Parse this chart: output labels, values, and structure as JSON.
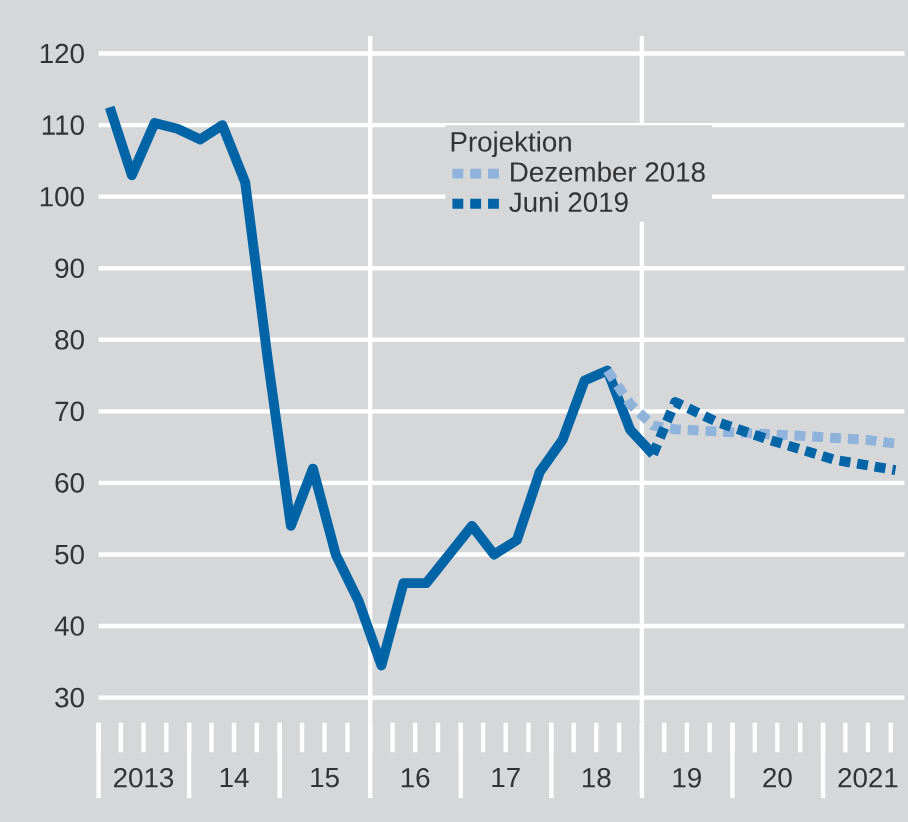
{
  "chart_data": {
    "type": "line",
    "legend_title": "Projektion",
    "xlim": [
      "2013-01-01",
      "2021-11-25"
    ],
    "ylim": [
      26.5,
      122.5
    ],
    "yticks": [
      30,
      40,
      50,
      60,
      70,
      80,
      90,
      100,
      110,
      120
    ],
    "xticks": [
      {
        "value": "2013-01-01",
        "label": null
      },
      {
        "value": "2013-04-01",
        "label": null
      },
      {
        "value": "2013-07-01",
        "label": "2013"
      },
      {
        "value": "2013-10-01",
        "label": null
      },
      {
        "value": "2014-01-01",
        "label": null
      },
      {
        "value": "2014-04-01",
        "label": null
      },
      {
        "value": "2014-07-01",
        "label": "14"
      },
      {
        "value": "2014-10-01",
        "label": null
      },
      {
        "value": "2015-01-01",
        "label": null
      },
      {
        "value": "2015-04-01",
        "label": null
      },
      {
        "value": "2015-07-01",
        "label": "15"
      },
      {
        "value": "2015-10-01",
        "label": null
      },
      {
        "value": "2016-01-01",
        "label": null
      },
      {
        "value": "2016-04-01",
        "label": null
      },
      {
        "value": "2016-07-01",
        "label": "16"
      },
      {
        "value": "2016-10-01",
        "label": null
      },
      {
        "value": "2017-01-01",
        "label": null
      },
      {
        "value": "2017-04-01",
        "label": null
      },
      {
        "value": "2017-07-01",
        "label": "17"
      },
      {
        "value": "2017-10-01",
        "label": null
      },
      {
        "value": "2018-01-01",
        "label": null
      },
      {
        "value": "2018-04-01",
        "label": null
      },
      {
        "value": "2018-07-01",
        "label": "18"
      },
      {
        "value": "2018-10-01",
        "label": null
      },
      {
        "value": "2019-01-01",
        "label": null
      },
      {
        "value": "2019-04-01",
        "label": null
      },
      {
        "value": "2019-07-01",
        "label": "19"
      },
      {
        "value": "2019-10-01",
        "label": null
      },
      {
        "value": "2020-01-01",
        "label": null
      },
      {
        "value": "2020-04-01",
        "label": null
      },
      {
        "value": "2020-07-01",
        "label": "20"
      },
      {
        "value": "2020-10-01",
        "label": null
      },
      {
        "value": "2021-01-01",
        "label": null
      },
      {
        "value": "2021-04-01",
        "label": null
      },
      {
        "value": "2021-07-01",
        "label": "2021"
      },
      {
        "value": "2021-10-01",
        "label": null
      }
    ],
    "grid": "y",
    "legend": "top",
    "ref_lines": [
      {
        "axis": "x",
        "value": "2016-01-01",
        "color": "#ffffff"
      },
      {
        "axis": "x",
        "value": "2019-01-01",
        "color": "#ffffff"
      }
    ],
    "series": [
      {
        "color": "#0064a6",
        "line_style": "solid",
        "x": [
          "2013-02-15",
          "2013-05-15",
          "2013-08-15",
          "2013-11-15",
          "2014-02-15",
          "2014-05-15",
          "2014-08-15",
          "2014-11-15",
          "2015-02-15",
          "2015-05-15",
          "2015-08-15",
          "2015-11-15",
          "2016-02-15",
          "2016-05-15",
          "2016-08-15",
          "2016-11-15",
          "2017-02-15",
          "2017-05-15",
          "2017-08-15",
          "2017-11-15",
          "2018-02-15",
          "2018-05-15",
          "2018-08-15",
          "2018-11-15",
          "2019-02-15"
        ],
        "values": [
          112.5,
          103,
          110.3,
          109.5,
          108,
          110,
          102,
          77,
          54,
          62,
          50,
          43.5,
          34.5,
          46,
          46,
          50,
          54,
          50,
          52,
          61.5,
          66,
          74.3,
          75.7,
          67.4,
          64
        ]
      },
      {
        "name": "Dezember 2018",
        "color": "#8fb3db",
        "line_style": "dotted",
        "x": [
          "2018-08-15",
          "2018-11-15",
          "2019-02-15",
          "2019-05-15",
          "2020-02-15",
          "2020-11-15",
          "2021-07-01",
          "2021-10-20"
        ],
        "values": [
          75.7,
          71,
          68,
          67.5,
          67,
          66.5,
          66,
          65.5
        ]
      },
      {
        "name": "Juni 2019",
        "color": "#0064a6",
        "line_style": "dotted",
        "x": [
          "2019-02-15",
          "2019-05-15",
          "2019-11-01",
          "2020-06-01",
          "2021-02-20",
          "2021-10-20"
        ],
        "values": [
          64,
          71.3,
          68.5,
          66,
          63.2,
          61.8
        ]
      }
    ]
  }
}
